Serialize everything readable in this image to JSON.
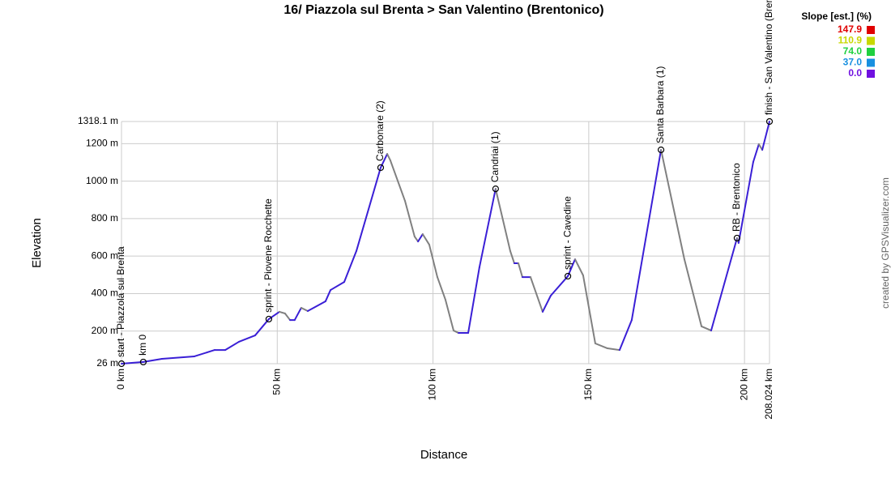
{
  "chart_data": {
    "type": "line",
    "title": "16/ Piazzola sul Brenta > San Valentino (Brentonico)",
    "x_label": "Distance",
    "y_label": "Elevation",
    "credit": "created by GPSVisualizer.com",
    "legend_title": "Slope [est.] (%)",
    "legend": [
      {
        "label": "147.9",
        "color": "#e00000"
      },
      {
        "label": "110.9",
        "color": "#c8d800"
      },
      {
        "label": "74.0",
        "color": "#20d040"
      },
      {
        "label": "37.0",
        "color": "#1890e0"
      },
      {
        "label": "0.0",
        "color": "#7010e0"
      }
    ],
    "grid": true,
    "xlim": [
      0,
      208.024
    ],
    "xticks": [
      {
        "value": 0,
        "label": "0 km"
      },
      {
        "value": 50,
        "label": "50 km"
      },
      {
        "value": 100,
        "label": "100 km"
      },
      {
        "value": 150,
        "label": "150 km"
      },
      {
        "value": 200,
        "label": "200 km"
      },
      {
        "value": 208.024,
        "label": "208.024 km"
      }
    ],
    "ylim": [
      26,
      1318.1
    ],
    "yticks": [
      {
        "value": 26,
        "label": "26 m"
      },
      {
        "value": 200,
        "label": "200 m"
      },
      {
        "value": 400,
        "label": "400 m"
      },
      {
        "value": 600,
        "label": "600 m"
      },
      {
        "value": 800,
        "label": "800 m"
      },
      {
        "value": 1000,
        "label": "1000 m"
      },
      {
        "value": 1200,
        "label": "1200 m"
      },
      {
        "value": 1318.1,
        "label": "1318.1 m"
      }
    ],
    "series": [
      {
        "name": "Elevation",
        "color": "#3a1fd6",
        "descent_color": "#808080",
        "x": [
          0,
          7,
          13,
          23.4,
          29.9,
          33.3,
          37.7,
          42.9,
          47.3,
          50.7,
          52.5,
          54.1,
          55.6,
          57.7,
          59.8,
          65.5,
          67.1,
          71.5,
          75.4,
          83.2,
          85.3,
          86.3,
          91,
          94.1,
          95.2,
          96.7,
          98.8,
          101.4,
          104,
          106.6,
          108.2,
          111.3,
          114.9,
          120.1,
          124.8,
          126.1,
          127.4,
          128.7,
          131.3,
          135.2,
          137.8,
          143.3,
          145.6,
          148.2,
          152.1,
          156,
          159.9,
          163.8,
          173.2,
          180.7,
          186.2,
          189.3,
          197.6,
          198.1,
          202.8,
          204.6,
          205.7,
          208.024
        ],
        "values": [
          26,
          35,
          52,
          65,
          99,
          99,
          143,
          177,
          264,
          303,
          294,
          259,
          259,
          324,
          307,
          359,
          419,
          462,
          627,
          1072,
          1145,
          1111,
          895,
          704,
          678,
          717,
          661,
          488,
          367,
          203,
          190,
          190,
          540,
          959,
          627,
          562,
          562,
          488,
          488,
          303,
          389,
          493,
          583,
          497,
          134,
          108,
          99,
          259,
          1167,
          583,
          225,
          203,
          696,
          670,
          1102,
          1197,
          1167,
          1318.1
        ]
      }
    ],
    "waypoints": [
      {
        "label": "start - Piazzola sul Brenta",
        "x": 0,
        "y": 26
      },
      {
        "label": "km 0",
        "x": 7,
        "y": 35
      },
      {
        "label": "sprint - Piovene Rocchette",
        "x": 47.3,
        "y": 264
      },
      {
        "label": "Carbonare (2)",
        "x": 83.2,
        "y": 1072
      },
      {
        "label": "Candriai (1)",
        "x": 120.1,
        "y": 959
      },
      {
        "label": "sprint - Cavedine",
        "x": 143.3,
        "y": 493
      },
      {
        "label": "Santa Barbara (1)",
        "x": 173.2,
        "y": 1167
      },
      {
        "label": "RB - Brentonico",
        "x": 197.6,
        "y": 696
      },
      {
        "label": "finish - San Valentino (Brentonico)",
        "x": 208.024,
        "y": 1318.1
      }
    ]
  }
}
